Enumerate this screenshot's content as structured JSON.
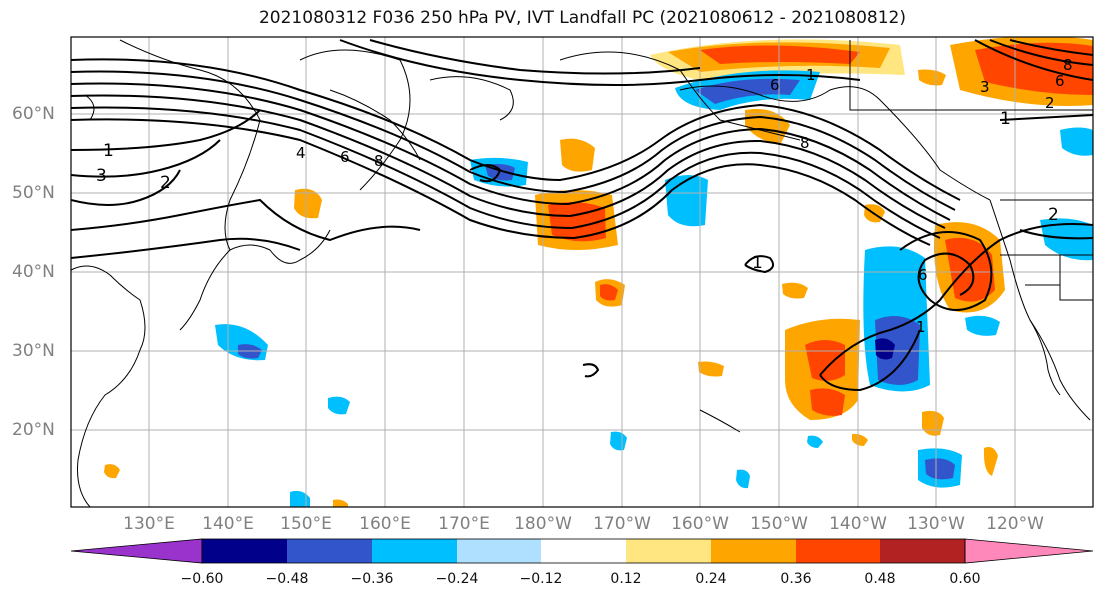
{
  "title": "2021080312 F036 250 hPa PV, IVT Landfall PC (2021080612 - 2021080812)",
  "latitude_labels": [
    "60°N",
    "50°N",
    "40°N",
    "30°N",
    "20°N"
  ],
  "longitude_labels": [
    "130°E",
    "140°E",
    "150°E",
    "160°E",
    "170°E",
    "180°W",
    "170°W",
    "160°W",
    "150°W",
    "140°W",
    "130°W",
    "120°W"
  ],
  "contour_labels": [
    "1",
    "3",
    "2",
    "4",
    "6",
    "8",
    "1",
    "6",
    "8",
    "1",
    "2",
    "6",
    "1",
    "2",
    "8",
    "3",
    "6",
    "1"
  ],
  "colorbar": {
    "levels": [
      "−0.60",
      "−0.48",
      "−0.36",
      "−0.24",
      "−0.12",
      "0.12",
      "0.24",
      "0.36",
      "0.48",
      "0.60"
    ],
    "colors": [
      "#9933cc",
      "#00008b",
      "#3355cc",
      "#00bfff",
      "#b0e0ff",
      "#ffffff",
      "#ffe680",
      "#ffa500",
      "#ff4500",
      "#b22222",
      "#ff88bb"
    ]
  },
  "fill_colors": {
    "orange": "#ffa500",
    "red_orange": "#ff4500",
    "pale_yellow": "#ffe680",
    "deep_sky_blue": "#00bfff",
    "royal_blue": "#3355cc",
    "navy": "#00008b",
    "light_blue": "#b0e0ff"
  }
}
